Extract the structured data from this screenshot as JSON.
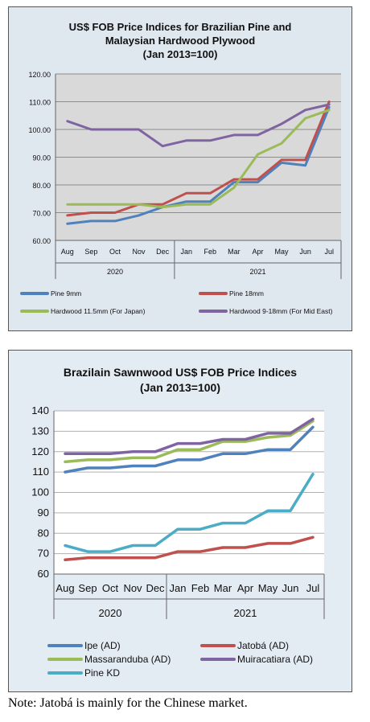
{
  "chart_data": [
    {
      "type": "line",
      "title": [
        "US$ FOB Price Indices for Brazilian Pine and",
        "Malaysian Hardwood Plywood",
        "(Jan 2013=100)"
      ],
      "categories": [
        "Aug",
        "Sep",
        "Oct",
        "Nov",
        "Dec",
        "Jan",
        "Feb",
        "Mar",
        "Apr",
        "May",
        "Jun",
        "Jul"
      ],
      "year_groups": [
        {
          "label": "2020",
          "count": 5
        },
        {
          "label": "2021",
          "count": 7
        }
      ],
      "ylim": [
        60,
        120
      ],
      "yticks": [
        "60.00",
        "70.00",
        "80.00",
        "90.00",
        "100.00",
        "110.00",
        "120.00"
      ],
      "plot_bg": "#d9d9d9",
      "series": [
        {
          "name": "Pine 9mm",
          "color": "#4f81bd",
          "values": [
            66,
            67,
            67,
            69,
            72,
            74,
            74,
            81,
            81,
            88,
            87,
            108
          ]
        },
        {
          "name": "Pine 18mm",
          "color": "#c0504d",
          "values": [
            69,
            70,
            70,
            73,
            73,
            77,
            77,
            82,
            82,
            89,
            89,
            110
          ]
        },
        {
          "name": "Hardwood 11.5mm (For Japan)",
          "color": "#9bbb59",
          "values": [
            73,
            73,
            73,
            73,
            72,
            73,
            73,
            79,
            91,
            95,
            104,
            107
          ]
        },
        {
          "name": "Hardwood 9-18mm (For Mid East)",
          "color": "#8064a2",
          "values": [
            103,
            100,
            100,
            100,
            94,
            96,
            96,
            98,
            98,
            102,
            107,
            109
          ]
        }
      ]
    },
    {
      "type": "line",
      "title": [
        "Brazilain Sawnwood US$ FOB Price Indices",
        "(Jan 2013=100)"
      ],
      "categories": [
        "Aug",
        "Sep",
        "Oct",
        "Nov",
        "Dec",
        "Jan",
        "Feb",
        "Mar",
        "Apr",
        "May",
        "Jun",
        "Jul"
      ],
      "year_groups": [
        {
          "label": "2020",
          "count": 5
        },
        {
          "label": "2021",
          "count": 7
        }
      ],
      "ylim": [
        60,
        140
      ],
      "yticks": [
        "60",
        "70",
        "80",
        "90",
        "100",
        "110",
        "120",
        "130",
        "140"
      ],
      "plot_bg": "#ffffff",
      "series": [
        {
          "name": "Ipe (AD)",
          "color": "#4f81bd",
          "values": [
            110,
            112,
            112,
            113,
            113,
            116,
            116,
            119,
            119,
            121,
            121,
            132
          ]
        },
        {
          "name": "Jatobá (AD)",
          "color": "#c0504d",
          "values": [
            67,
            68,
            68,
            68,
            68,
            71,
            71,
            73,
            73,
            75,
            75,
            78
          ]
        },
        {
          "name": "Massaranduba (AD)",
          "color": "#9bbb59",
          "values": [
            115,
            116,
            116,
            117,
            117,
            121,
            121,
            125,
            125,
            127,
            128,
            135
          ]
        },
        {
          "name": "Muiracatiara (AD)",
          "color": "#8064a2",
          "values": [
            119,
            119,
            119,
            120,
            120,
            124,
            124,
            126,
            126,
            129,
            129,
            136
          ]
        },
        {
          "name": "Pine KD",
          "color": "#4bacc6",
          "values": [
            74,
            71,
            71,
            74,
            74,
            82,
            82,
            85,
            85,
            91,
            91,
            109
          ]
        }
      ]
    }
  ],
  "note": "Note: Jatobá is mainly for the Chinese market."
}
